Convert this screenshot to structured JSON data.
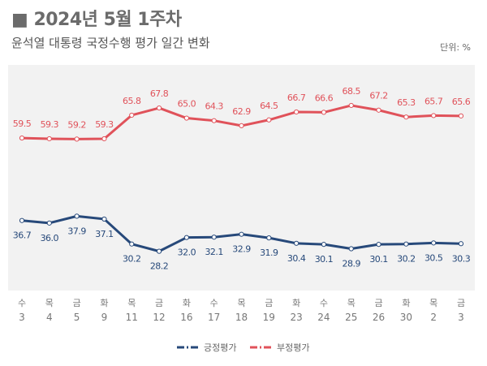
{
  "title": "■ 2024년 5월 1주차",
  "subtitle": "윤석열 대통령 국정수행 평가 일간 변화",
  "unit": "단위: %",
  "chart_data": {
    "type": "line",
    "title": "윤석열 대통령 국정수행 평가 일간 변화",
    "x_weekdays": [
      "수",
      "목",
      "금",
      "화",
      "목",
      "금",
      "화",
      "수",
      "목",
      "금",
      "화",
      "수",
      "목",
      "금",
      "화",
      "목",
      "금"
    ],
    "x": [
      "3",
      "4",
      "5",
      "9",
      "11",
      "12",
      "16",
      "17",
      "18",
      "19",
      "23",
      "24",
      "25",
      "26",
      "30",
      "2",
      "3"
    ],
    "series": [
      {
        "name": "긍정평가",
        "color": "#27497a",
        "values": [
          36.7,
          36.0,
          37.9,
          37.1,
          30.2,
          28.2,
          32.0,
          32.1,
          32.9,
          31.9,
          30.4,
          30.1,
          28.9,
          30.1,
          30.2,
          30.5,
          30.3
        ]
      },
      {
        "name": "부정평가",
        "color": "#e0525a",
        "values": [
          59.5,
          59.3,
          59.2,
          59.3,
          65.8,
          67.8,
          65.0,
          64.3,
          62.9,
          64.5,
          66.7,
          66.6,
          68.5,
          67.2,
          65.3,
          65.7,
          65.6
        ]
      }
    ],
    "grid": false,
    "legend": "bottom",
    "background": "#f2f2f2"
  }
}
